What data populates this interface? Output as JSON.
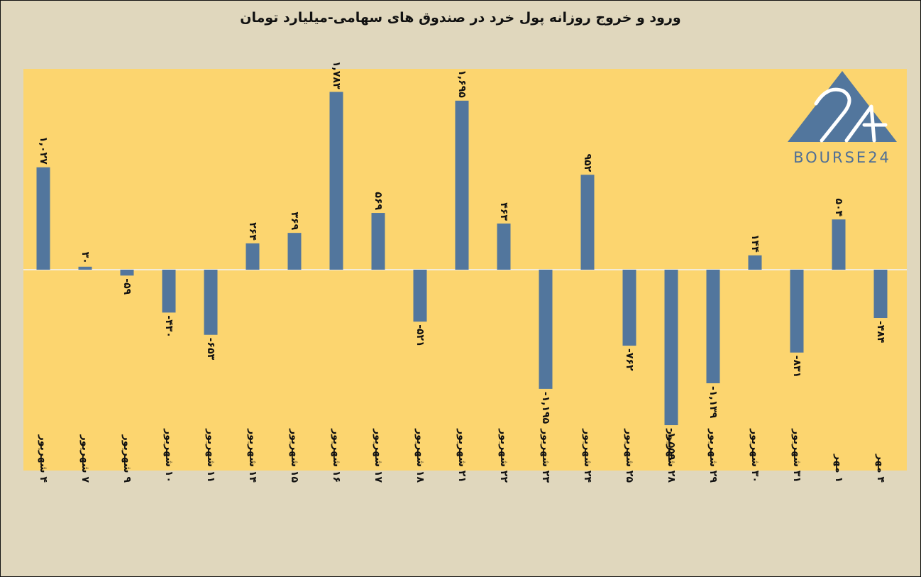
{
  "title": "ورود و خروج روزانه پول خرد در صندوق های سهامی-میلیارد تومان",
  "logo": {
    "text": "BOURSE24",
    "mark": "24"
  },
  "colors": {
    "background": "#e0d7bd",
    "plot": "#fcd56f",
    "bar": "#52769d"
  },
  "chart_data": {
    "type": "bar",
    "title": "ورود و خروج روزانه پول خرد در صندوق های سهامی-میلیارد تومان",
    "xlabel": "",
    "ylabel": "",
    "categories": [
      "۴ شهریور",
      "۷ شهریور",
      "۹ شهریور",
      "۱۰ شهریور",
      "۱۱ شهریور",
      "۱۴ شهریور",
      "۱۵ شهریور",
      "۱۶ شهریور",
      "۱۷ شهریور",
      "۱۸ شهریور",
      "۲۱ شهریور",
      "۲۲ شهریور",
      "۲۳ شهریور",
      "۲۴ شهریور",
      "۲۵ شهریور",
      "۲۸ شهریور",
      "۲۹ شهریور",
      "۳۰ شهریور",
      "۳۱ شهریور",
      "۱ مهر",
      "۴ مهر"
    ],
    "values": [
      1027,
      30,
      -59,
      -430,
      -653,
      264,
      369,
      1783,
      569,
      -521,
      1695,
      463,
      -1195,
      952,
      -762,
      -1559,
      -1139,
      144,
      -831,
      504,
      -484
    ],
    "labels": [
      "۱,۰۲۷",
      "۳۰",
      "-۵۹",
      "-۴۳۰",
      "-۶۵۳",
      "۲۶۴",
      "۳۶۹",
      "۱,۷۸۳",
      "۵۶۹",
      "-۵۲۱",
      "۱,۶۹۵",
      "۴۶۳",
      "-۱,۱۹۵",
      "۹۵۲",
      "-۷۶۲",
      "-۱,۵۵۹",
      "-۱,۱۳۹",
      "۱۴۴",
      "-۸۳۱",
      "۵۰۴",
      "-۴۸۴"
    ],
    "ylim": [
      -2000,
      2000
    ],
    "grid": false,
    "legend": "none"
  }
}
